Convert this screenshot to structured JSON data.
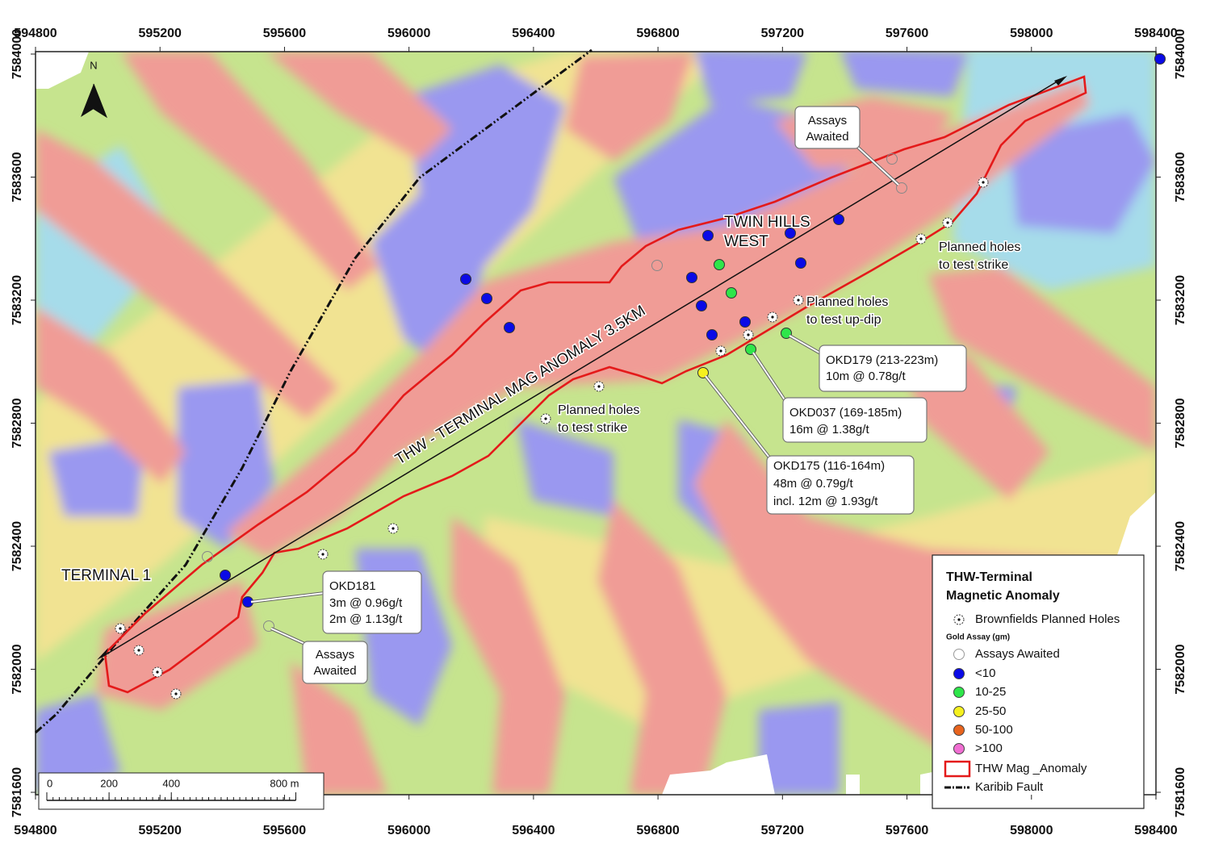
{
  "map": {
    "xticks": [
      594800,
      595200,
      595600,
      596000,
      596400,
      596800,
      597200,
      597600,
      598000,
      598400
    ],
    "yticks": [
      7581600,
      7582000,
      7582400,
      7582800,
      7583200,
      7583600,
      7584000
    ],
    "north": "N",
    "labels": {
      "twin_hills": [
        "TWIN HILLS",
        "WEST"
      ],
      "anomaly": "THW - TERMINAL MAG ANOMALY 3.5KM",
      "terminal": "TERMINAL 1",
      "strike_east": [
        "Planned holes",
        "to test strike"
      ],
      "strike_mid": [
        "Planned holes",
        "to test strike"
      ],
      "updip": [
        "Planned holes",
        "to test up-dip"
      ]
    },
    "callouts": [
      {
        "lines": [
          "Assays",
          "Awaited"
        ]
      },
      {
        "lines": [
          "Assays",
          "Awaited"
        ]
      },
      {
        "lines": [
          "OKD179 (213-223m)",
          "10m @ 0.78g/t"
        ]
      },
      {
        "lines": [
          "OKD037 (169-185m)",
          "16m @ 1.38g/t"
        ]
      },
      {
        "lines": [
          "OKD175 (116-164m)",
          "48m @ 0.79g/t",
          "incl. 12m @ 1.93g/t"
        ]
      },
      {
        "lines": [
          "OKD181",
          "3m @ 0.96g/t",
          "2m @ 1.13g/t"
        ]
      }
    ],
    "scale_bar": {
      "ticks": [
        0,
        200,
        400,
        {
          "value": 800,
          "label": "800 m"
        }
      ]
    },
    "legend": {
      "title": [
        "THW-Terminal",
        "Magnetic Anomaly"
      ],
      "planned": "Brownfields Planned Holes",
      "subtitle": "Gold Assay (gm)",
      "classes": [
        {
          "label": "Assays Awaited",
          "color": "#ffffff"
        },
        {
          "label": "<10",
          "color": "#0a0ae6"
        },
        {
          "label": "10-25",
          "color": "#2ee64a"
        },
        {
          "label": "25-50",
          "color": "#f5f01e"
        },
        {
          "label": "50-100",
          "color": "#e8641e"
        },
        {
          "label": ">100",
          "color": "#f06ed2"
        }
      ],
      "anomaly": "THW Mag _Anomaly",
      "fault": "Karibib Fault"
    }
  }
}
